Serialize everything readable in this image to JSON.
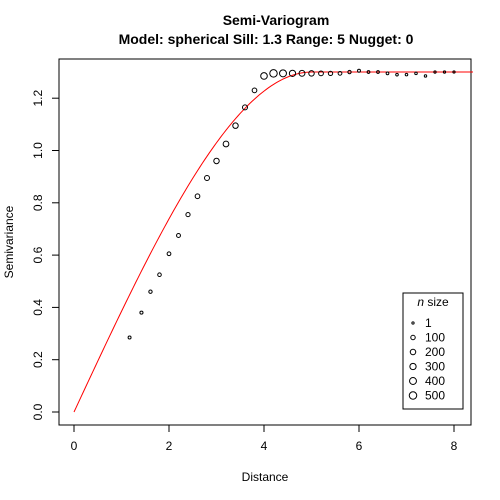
{
  "chart_data": {
    "type": "scatter",
    "title": "Semi-Variogram",
    "subtitle": "Model: spherical Sill: 1.3 Range: 5 Nugget: 0",
    "xlabel": "Distance",
    "ylabel": "Semivariance",
    "xlim": [
      0,
      8.2
    ],
    "ylim": [
      0,
      1.3
    ],
    "x_ticks": [
      "0",
      "2",
      "4",
      "6",
      "8"
    ],
    "x_tick_values": [
      0,
      2,
      4,
      6,
      8
    ],
    "y_ticks": [
      "0.0",
      "0.2",
      "0.4",
      "0.6",
      "0.8",
      "1.0",
      "1.2"
    ],
    "y_tick_values": [
      0,
      0.2,
      0.4,
      0.6,
      0.8,
      1.0,
      1.2
    ],
    "grid": false,
    "legend_placement": "bottom-right",
    "model_line": {
      "model": "spherical",
      "sill": 1.3,
      "range": 5,
      "nugget": 0,
      "color": "#ff0000"
    },
    "points": [
      {
        "x": 1.17,
        "y": 0.285,
        "n": 15
      },
      {
        "x": 1.42,
        "y": 0.38,
        "n": 20
      },
      {
        "x": 1.61,
        "y": 0.46,
        "n": 30
      },
      {
        "x": 1.8,
        "y": 0.525,
        "n": 40
      },
      {
        "x": 2.0,
        "y": 0.605,
        "n": 50
      },
      {
        "x": 2.2,
        "y": 0.675,
        "n": 60
      },
      {
        "x": 2.4,
        "y": 0.755,
        "n": 80
      },
      {
        "x": 2.6,
        "y": 0.825,
        "n": 120
      },
      {
        "x": 2.8,
        "y": 0.895,
        "n": 150
      },
      {
        "x": 3.0,
        "y": 0.96,
        "n": 200
      },
      {
        "x": 3.2,
        "y": 1.025,
        "n": 230
      },
      {
        "x": 3.4,
        "y": 1.095,
        "n": 200
      },
      {
        "x": 3.6,
        "y": 1.165,
        "n": 150
      },
      {
        "x": 3.8,
        "y": 1.23,
        "n": 120
      },
      {
        "x": 4.0,
        "y": 1.285,
        "n": 350
      },
      {
        "x": 4.2,
        "y": 1.295,
        "n": 500
      },
      {
        "x": 4.4,
        "y": 1.295,
        "n": 400
      },
      {
        "x": 4.6,
        "y": 1.295,
        "n": 300
      },
      {
        "x": 4.8,
        "y": 1.295,
        "n": 250
      },
      {
        "x": 5.0,
        "y": 1.295,
        "n": 200
      },
      {
        "x": 5.2,
        "y": 1.295,
        "n": 130
      },
      {
        "x": 5.4,
        "y": 1.295,
        "n": 90
      },
      {
        "x": 5.6,
        "y": 1.295,
        "n": 50
      },
      {
        "x": 5.8,
        "y": 1.3,
        "n": 30
      },
      {
        "x": 6.0,
        "y": 1.305,
        "n": 15
      },
      {
        "x": 6.2,
        "y": 1.3,
        "n": 10
      },
      {
        "x": 6.4,
        "y": 1.3,
        "n": 10
      },
      {
        "x": 6.6,
        "y": 1.295,
        "n": 8
      },
      {
        "x": 6.8,
        "y": 1.29,
        "n": 6
      },
      {
        "x": 7.0,
        "y": 1.29,
        "n": 5
      },
      {
        "x": 7.2,
        "y": 1.295,
        "n": 4
      },
      {
        "x": 7.4,
        "y": 1.285,
        "n": 3
      },
      {
        "x": 7.6,
        "y": 1.3,
        "n": 2
      },
      {
        "x": 7.8,
        "y": 1.3,
        "n": 2
      },
      {
        "x": 8.0,
        "y": 1.3,
        "n": 1
      }
    ],
    "legend": {
      "title_italic": "n",
      "title_rest": " size",
      "entries": [
        {
          "label": "1",
          "n": 1
        },
        {
          "label": "100",
          "n": 100
        },
        {
          "label": "200",
          "n": 200
        },
        {
          "label": "300",
          "n": 300
        },
        {
          "label": "400",
          "n": 400
        },
        {
          "label": "500",
          "n": 500
        }
      ]
    }
  }
}
